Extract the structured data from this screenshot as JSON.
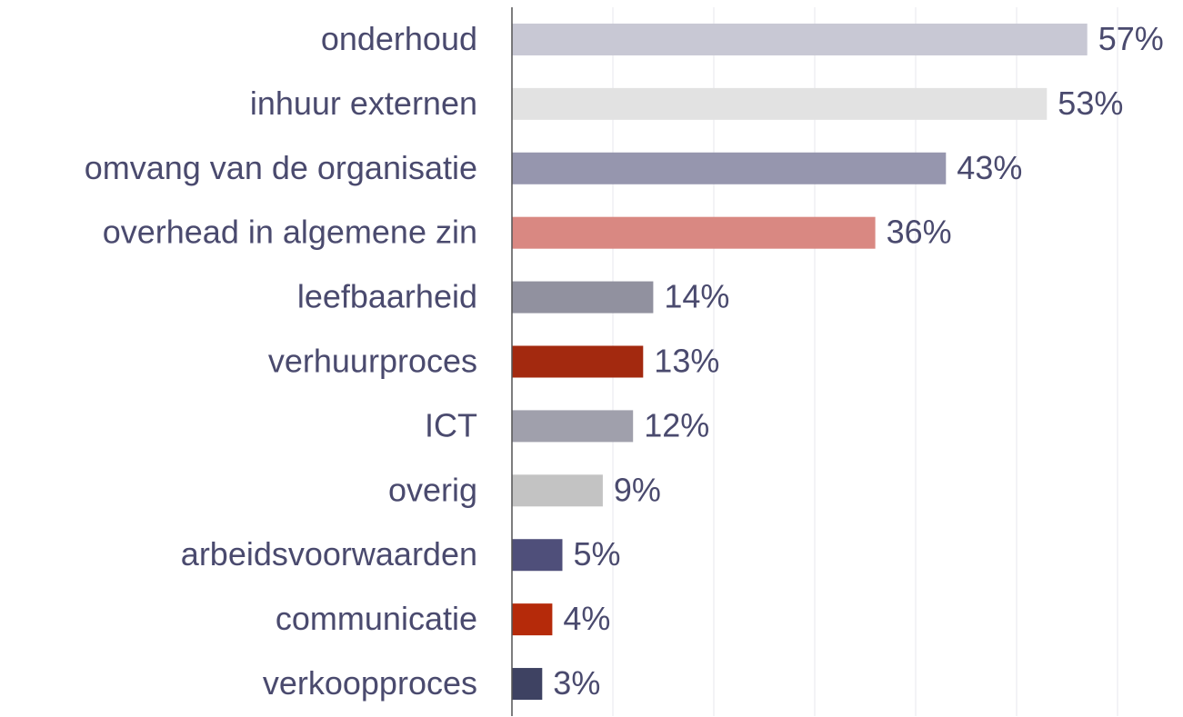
{
  "chart_data": {
    "type": "bar",
    "orientation": "horizontal",
    "categories": [
      "onderhoud",
      "inhuur externen",
      "omvang van de organisatie",
      "overhead in algemene zin",
      "leefbaarheid",
      "verhuurproces",
      "ICT",
      "overig",
      "arbeidsvoorwaarden",
      "communicatie",
      "verkoopproces"
    ],
    "values": [
      57,
      53,
      43,
      36,
      14,
      13,
      12,
      9,
      5,
      4,
      3
    ],
    "value_labels": [
      "57%",
      "53%",
      "43%",
      "36%",
      "14%",
      "13%",
      "12%",
      "9%",
      "5%",
      "4%",
      "3%"
    ],
    "colors": [
      "#c8c8d4",
      "#e2e2e2",
      "#9696ae",
      "#d98882",
      "#91919f",
      "#a3290f",
      "#a0a0ac",
      "#c3c3c3",
      "#4f4f7a",
      "#b52a0a",
      "#3e4262"
    ],
    "xlim": [
      0,
      60
    ],
    "xticks": [
      0,
      10,
      20,
      30,
      40,
      50,
      60
    ],
    "grid": true
  }
}
